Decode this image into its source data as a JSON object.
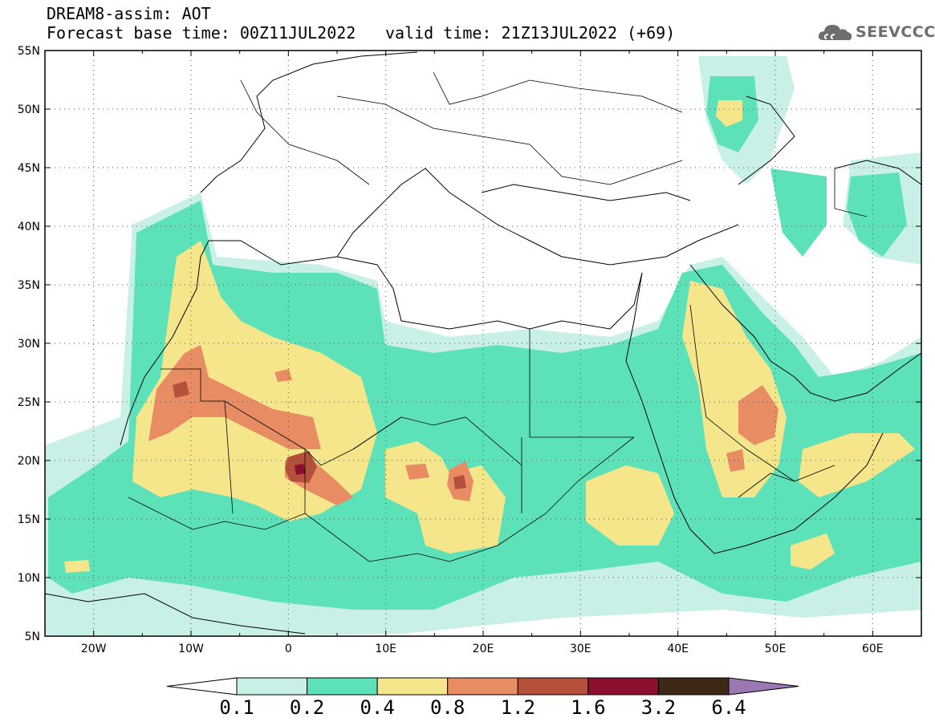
{
  "header": {
    "title": "DREAM8-assim: AOT",
    "base_time": "Forecast base time: 00Z11JUL2022",
    "valid_time": "valid time: 21Z13JUL2022 (+69)"
  },
  "logo": {
    "text": "SEEVCCC",
    "icon": "cloud-icon"
  },
  "map": {
    "lon_range": [
      -25,
      65
    ],
    "lat_range": [
      5,
      55
    ],
    "lat_labels": [
      "55N",
      "50N",
      "45N",
      "40N",
      "35N",
      "30N",
      "25N",
      "20N",
      "15N",
      "10N",
      "5N"
    ],
    "lon_labels": [
      "20W",
      "10W",
      "0",
      "10E",
      "20E",
      "30E",
      "40E",
      "50E",
      "60E"
    ],
    "grid": "dotted"
  },
  "colorbar": {
    "labels": [
      "0.1",
      "0.2",
      "0.4",
      "0.8",
      "1.2",
      "1.6",
      "3.2",
      "6.4"
    ],
    "colors": [
      "#ffffff",
      "#c8f0e6",
      "#5ce1b9",
      "#f5e68c",
      "#e88c64",
      "#b4503c",
      "#8c0f2d",
      "#3c2814",
      "#9b78b4"
    ]
  },
  "colors": {
    "aot_0_1": "#c8f0e6",
    "aot_0_2": "#5ce1b9",
    "aot_0_4": "#f5e68c",
    "aot_0_8": "#e88c64",
    "aot_1_2": "#b4503c",
    "aot_1_6": "#8c0f2d"
  }
}
